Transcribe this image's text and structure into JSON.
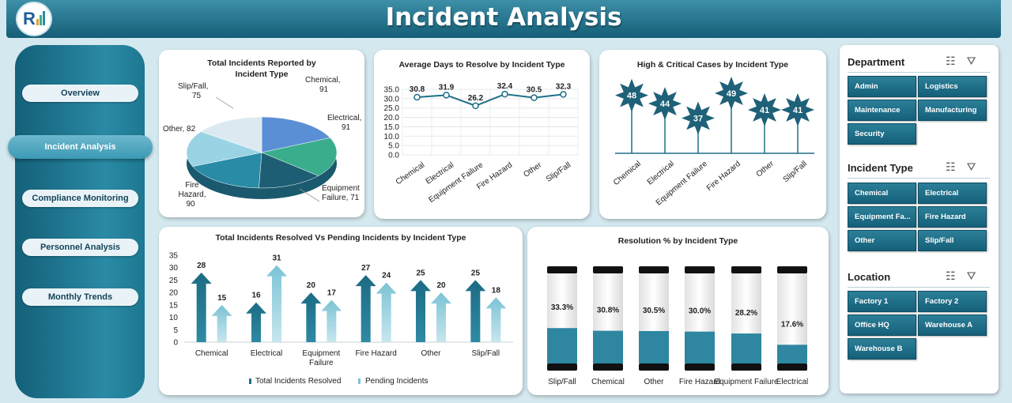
{
  "header": {
    "title": "Incident Analysis",
    "logo_icon": "company-logo-icon"
  },
  "nav": [
    {
      "label": "Overview",
      "active": false
    },
    {
      "label": "Incident Analysis",
      "active": true
    },
    {
      "label": "Compliance Monitoring",
      "active": false
    },
    {
      "label": "Personnel Analysis",
      "active": false
    },
    {
      "label": "Monthly Trends",
      "active": false
    }
  ],
  "chart_data": [
    {
      "type": "pie",
      "title": "Total Incidents Reported by Incident Type",
      "categories": [
        "Chemical",
        "Electrical",
        "Equipment Failure",
        "Fire Hazard",
        "Other",
        "Slip/Fall"
      ],
      "values": [
        91,
        91,
        71,
        90,
        82,
        75
      ],
      "labels": [
        "Chemical, 91",
        "Electrical, 91",
        "Equipment Failure, 71",
        "Fire Hazard, 90",
        "Other, 82",
        "Slip/Fall, 75"
      ],
      "colors": [
        "#5a8fd6",
        "#3aae8c",
        "#1e5e74",
        "#2a8ba6",
        "#9ad4e4",
        "#dce9f0"
      ]
    },
    {
      "type": "line",
      "title": "Average Days to Resolve by Incident Type",
      "categories": [
        "Chemical",
        "Electrical",
        "Equipment Failure",
        "Fire Hazard",
        "Other",
        "Slip/Fall"
      ],
      "values": [
        30.8,
        31.9,
        26.2,
        32.4,
        30.5,
        32.3
      ],
      "value_labels": [
        "30.8",
        "31.9",
        "26.2",
        "32.4",
        "30.5",
        "32.3"
      ],
      "ylim": [
        0,
        35
      ],
      "yticks": [
        "0.0",
        "5.0",
        "10.0",
        "15.0",
        "20.0",
        "25.0",
        "30.0",
        "35.0"
      ]
    },
    {
      "type": "bar",
      "title": "High & Critical Cases by Incident Type",
      "categories": [
        "Chemical",
        "Electrical",
        "Equipment Failure",
        "Fire Hazard",
        "Other",
        "Slip/Fall"
      ],
      "values": [
        48,
        44,
        37,
        49,
        41,
        41
      ],
      "value_labels": [
        "48",
        "44",
        "37",
        "49",
        "41",
        "41"
      ]
    },
    {
      "type": "bar",
      "title": "Total Incidents Resolved Vs Pending Incidents by Incident Type",
      "categories": [
        "Chemical",
        "Electrical",
        "Equipment Failure",
        "Fire Hazard",
        "Other",
        "Slip/Fall"
      ],
      "category_lines": [
        [
          "Chemical"
        ],
        [
          "Electrical"
        ],
        [
          "Equipment",
          "Failure"
        ],
        [
          "Fire Hazard"
        ],
        [
          "Other"
        ],
        [
          "Slip/Fall"
        ]
      ],
      "series": [
        {
          "name": "Total Incidents Resolved",
          "values": [
            28,
            16,
            20,
            27,
            25,
            25
          ],
          "value_labels": [
            "28",
            "16",
            "20",
            "27",
            "25",
            "25"
          ]
        },
        {
          "name": "Pending  Incidents",
          "values": [
            15,
            31,
            17,
            24,
            20,
            18
          ],
          "value_labels": [
            "15",
            "31",
            "17",
            "24",
            "20",
            "18"
          ]
        }
      ],
      "ylim": [
        0,
        35
      ],
      "yticks": [
        "0",
        "5",
        "10",
        "15",
        "20",
        "25",
        "30",
        "35"
      ],
      "legend": "bottom"
    },
    {
      "type": "bar",
      "title": "Resolution % by Incident Type",
      "categories": [
        "Slip/Fall",
        "Chemical",
        "Other",
        "Fire Hazard",
        "Equipment Failure",
        "Electrical"
      ],
      "values": [
        33.3,
        30.8,
        30.5,
        30.0,
        28.2,
        17.6
      ],
      "value_labels": [
        "33.3%",
        "30.8%",
        "30.5%",
        "30.0%",
        "28.2%",
        "17.6%"
      ],
      "ylim": [
        0,
        100
      ]
    }
  ],
  "slicers": [
    {
      "title": "Department",
      "items": [
        "Admin",
        "Logistics",
        "Maintenance",
        "Manufacturing",
        "Security"
      ]
    },
    {
      "title": "Incident Type",
      "items": [
        "Chemical",
        "Electrical",
        "Equipment Fa...",
        "Fire Hazard",
        "Other",
        "Slip/Fall"
      ]
    },
    {
      "title": "Location",
      "items": [
        "Factory 1",
        "Factory 2",
        "Office HQ",
        "Warehouse A",
        "Warehouse B"
      ]
    }
  ],
  "colors": {
    "primary": "#1e6f88",
    "secondary": "#7fc1d3",
    "header": "#155f78"
  }
}
